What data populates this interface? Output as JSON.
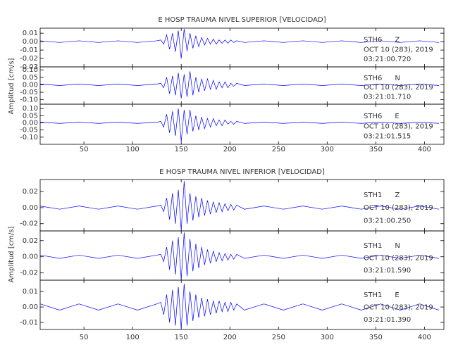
{
  "chart_data": [
    {
      "type": "line",
      "title": "E HOSP TRAUMA NIVEL SUPERIOR [VELOCIDAD]",
      "ylabel": "Amplitud [cm/s]",
      "xlim": [
        5,
        420
      ],
      "xticks": [
        50,
        100,
        150,
        200,
        250,
        300,
        350,
        400
      ],
      "x": [
        5,
        25,
        45,
        65,
        85,
        105,
        125,
        129,
        132,
        135,
        138,
        141,
        144,
        147,
        150,
        153,
        156,
        159,
        162,
        165,
        168,
        171,
        174,
        177,
        180,
        183,
        186,
        189,
        192,
        195,
        198,
        201,
        204,
        207,
        215,
        235,
        255,
        275,
        295,
        315,
        335,
        355,
        375,
        395,
        415
      ],
      "traces": [
        {
          "station": "STH6",
          "component": "Z",
          "date": "OCT 10 (283), 2019",
          "time": "03:21:00.720",
          "color": "#0000ff",
          "ylim": [
            -0.03,
            0.016
          ],
          "yticks": [
            0.01,
            {
              "value": 0,
              "label": "0.00"
            },
            -0.01,
            -0.02,
            -0.03
          ],
          "values": [
            0.001,
            -0.001,
            0.001,
            -0.001,
            0.001,
            -0.001,
            0.001,
            0.002,
            -0.003,
            0.008,
            -0.009,
            0.01,
            -0.012,
            0.013,
            -0.02,
            0.015,
            -0.011,
            0.01,
            -0.008,
            0.007,
            -0.006,
            0.005,
            -0.004,
            0.004,
            -0.003,
            0.003,
            -0.003,
            0.002,
            -0.002,
            0.002,
            -0.002,
            0.002,
            -0.001,
            0.001,
            -0.001,
            0.001,
            -0.001,
            0.001,
            -0.001,
            0.001,
            -0.001,
            0.001,
            -0.001,
            0.001,
            -0.001
          ]
        },
        {
          "station": "STH6",
          "component": "N",
          "date": "OCT 10 (283), 2019",
          "time": "03:21:01.710",
          "color": "#0000ff",
          "ylim": [
            -0.13,
            0.12
          ],
          "yticks": [
            {
              "value": 0.1,
              "label": "0.10"
            },
            0.05,
            {
              "value": 0,
              "label": "0.00"
            },
            -0.05,
            {
              "value": -0.1,
              "label": "-0.10"
            }
          ],
          "values": [
            0.005,
            -0.005,
            0.005,
            -0.005,
            0.005,
            -0.005,
            0.005,
            0.01,
            -0.02,
            0.05,
            -0.06,
            0.06,
            -0.07,
            0.08,
            -0.09,
            0.07,
            -0.08,
            0.09,
            -0.07,
            0.05,
            -0.05,
            0.04,
            -0.04,
            0.04,
            -0.03,
            0.03,
            -0.03,
            0.02,
            -0.02,
            0.02,
            -0.02,
            0.01,
            -0.01,
            0.01,
            -0.005,
            0.005,
            -0.005,
            0.005,
            -0.005,
            0.005,
            -0.005,
            0.005,
            -0.005,
            0.005,
            -0.005
          ]
        },
        {
          "station": "STH6",
          "component": "E",
          "date": "OCT 10 (283), 2019",
          "time": "03:21:01.515",
          "color": "#0000ff",
          "ylim": [
            -0.15,
            0.13
          ],
          "yticks": [
            {
              "value": 0.1,
              "label": "0.10"
            },
            0.05,
            {
              "value": 0,
              "label": "0.00"
            },
            -0.05,
            {
              "value": -0.1,
              "label": "-0.10"
            }
          ],
          "values": [
            0.004,
            -0.004,
            0.004,
            -0.004,
            0.004,
            -0.004,
            0.004,
            0.01,
            -0.03,
            0.06,
            -0.07,
            0.08,
            -0.09,
            0.1,
            -0.13,
            0.09,
            -0.08,
            0.09,
            -0.06,
            0.05,
            -0.05,
            0.04,
            -0.04,
            0.03,
            -0.03,
            0.03,
            -0.02,
            0.02,
            -0.02,
            0.02,
            -0.01,
            0.01,
            -0.01,
            0.01,
            -0.004,
            0.004,
            -0.004,
            0.004,
            -0.004,
            0.004,
            -0.004,
            0.004,
            -0.004,
            0.004,
            -0.004
          ]
        }
      ]
    },
    {
      "type": "line",
      "title": "E HOSP TRAUMA NIVEL INFERIOR [VELOCIDAD]",
      "ylabel": "Amplitud [cm/s]",
      "xlim": [
        5,
        420
      ],
      "xticks": [
        50,
        100,
        150,
        200,
        250,
        300,
        350,
        400
      ],
      "x": [
        5,
        25,
        45,
        65,
        85,
        105,
        125,
        129,
        132,
        135,
        138,
        141,
        144,
        147,
        150,
        153,
        156,
        159,
        162,
        165,
        168,
        171,
        174,
        177,
        180,
        183,
        186,
        189,
        192,
        195,
        198,
        201,
        204,
        207,
        215,
        235,
        255,
        275,
        295,
        315,
        335,
        355,
        375,
        395,
        415
      ],
      "traces": [
        {
          "station": "STH1",
          "component": "Z",
          "date": "OCT 10 (283), 2019",
          "time": "03:21:00.250",
          "color": "#0000ff",
          "ylim": [
            -0.029,
            0.035
          ],
          "yticks": [
            0.02,
            {
              "value": 0,
              "label": "0.00"
            },
            -0.02
          ],
          "values": [
            0.002,
            -0.002,
            0.002,
            -0.002,
            0.002,
            -0.002,
            0.002,
            0.003,
            -0.005,
            0.012,
            -0.015,
            0.018,
            -0.02,
            0.022,
            -0.028,
            0.033,
            -0.02,
            0.018,
            -0.016,
            0.014,
            -0.012,
            0.012,
            -0.01,
            0.009,
            -0.008,
            0.007,
            -0.006,
            0.006,
            -0.005,
            0.005,
            -0.004,
            0.004,
            -0.003,
            0.003,
            -0.002,
            0.002,
            -0.002,
            0.002,
            -0.002,
            0.002,
            -0.002,
            0.002,
            -0.002,
            0.002,
            -0.002
          ]
        },
        {
          "station": "STH1",
          "component": "N",
          "date": "OCT 10 (283), 2019",
          "time": "03:21:01.590",
          "color": "#0000ff",
          "ylim": [
            -0.029,
            0.032
          ],
          "yticks": [
            0.02,
            {
              "value": 0,
              "label": "0.00"
            },
            -0.02
          ],
          "values": [
            0.002,
            -0.002,
            0.002,
            -0.002,
            0.002,
            -0.002,
            0.002,
            0.003,
            -0.006,
            0.012,
            -0.016,
            0.02,
            -0.022,
            0.024,
            -0.028,
            0.03,
            -0.024,
            0.022,
            -0.018,
            0.016,
            -0.014,
            0.012,
            -0.01,
            0.009,
            -0.008,
            0.007,
            -0.006,
            0.005,
            -0.005,
            0.004,
            -0.004,
            0.003,
            -0.003,
            0.003,
            -0.002,
            0.002,
            -0.002,
            0.002,
            -0.002,
            0.002,
            -0.002,
            0.002,
            -0.002,
            0.002,
            -0.002
          ]
        },
        {
          "station": "STH1",
          "component": "E",
          "date": "OCT 10 (283), 2019",
          "time": "03:21:01.390",
          "color": "#0000ff",
          "ylim": [
            -0.0145,
            0.0173
          ],
          "yticks": [
            0.01,
            {
              "value": 0,
              "label": "0.00"
            },
            -0.01
          ],
          "values": [
            0.002,
            -0.002,
            0.002,
            -0.002,
            0.002,
            -0.002,
            0.002,
            0.003,
            -0.005,
            0.008,
            -0.01,
            0.011,
            -0.012,
            0.013,
            -0.014,
            0.015,
            -0.012,
            0.01,
            -0.009,
            0.008,
            -0.007,
            0.006,
            -0.006,
            0.005,
            -0.005,
            0.004,
            -0.004,
            0.004,
            -0.003,
            0.003,
            -0.003,
            0.003,
            -0.002,
            0.002,
            -0.002,
            0.002,
            -0.002,
            0.002,
            -0.002,
            0.002,
            -0.002,
            0.002,
            -0.002,
            0.002,
            -0.002
          ]
        }
      ]
    }
  ]
}
